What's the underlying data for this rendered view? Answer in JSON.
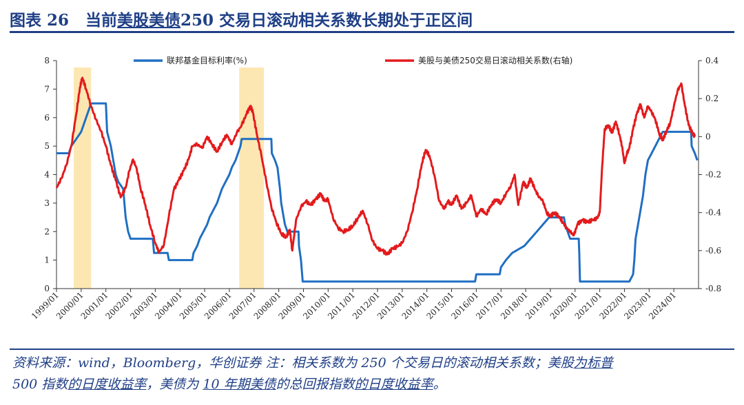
{
  "header": {
    "figure_no": "图表 26",
    "title_prefix": "当前",
    "title_u1": "美股美债",
    "title_rest": "250 交易日滚动相关系数长期处于正区间"
  },
  "source": {
    "line1_a": "资料来源：wind，Bloomberg，华创证券  注：相关系数为 250 个交易日的滚动相关系数；美股",
    "line1_u": "为标普",
    "line2_a": "500 指数",
    "line2_u1": "的日度收益率",
    "line2_b": "，美债为 ",
    "line2_u2": "10 年期美债",
    "line2_c": "的总回报指数",
    "line2_u3": "的日度收益率",
    "line2_d": "。"
  },
  "chart_data": {
    "type": "line",
    "title": "",
    "legend_position": "top",
    "colors": {
      "fed": "#1f6fc2",
      "corr": "#e31a1c",
      "shade": "#fce7b2"
    },
    "x_ticks": [
      "1999/01",
      "2000/01",
      "2001/01",
      "2002/01",
      "2003/01",
      "2004/01",
      "2005/01",
      "2006/01",
      "2007/01",
      "2008/01",
      "2009/01",
      "2010/01",
      "2011/01",
      "2012/01",
      "2013/01",
      "2014/01",
      "2015/01",
      "2016/01",
      "2017/01",
      "2018/01",
      "2019/01",
      "2020/01",
      "2021/01",
      "2022/01",
      "2023/01",
      "2024/01"
    ],
    "x_range": [
      1999.0,
      2025.0
    ],
    "y_left": {
      "range": [
        0,
        8
      ],
      "ticks": [
        "0",
        "1",
        "2",
        "3",
        "4",
        "5",
        "6",
        "7",
        "8"
      ]
    },
    "y_right": {
      "range": [
        -0.8,
        0.4
      ],
      "ticks": [
        "-0.8",
        "-0.6",
        "-0.4",
        "-0.2",
        "0",
        "0.2",
        "0.4"
      ]
    },
    "shaded_periods": [
      [
        1999.7,
        2000.4
      ],
      [
        2006.4,
        2007.4
      ]
    ],
    "series": [
      {
        "name": "联邦基金目标利率(%)",
        "axis": "left",
        "points": [
          [
            1999.0,
            4.75
          ],
          [
            1999.5,
            4.75
          ],
          [
            1999.6,
            5.0
          ],
          [
            1999.8,
            5.25
          ],
          [
            2000.0,
            5.5
          ],
          [
            2000.2,
            6.0
          ],
          [
            2000.4,
            6.5
          ],
          [
            2001.0,
            6.5
          ],
          [
            2001.05,
            5.5
          ],
          [
            2001.2,
            5.0
          ],
          [
            2001.3,
            4.5
          ],
          [
            2001.4,
            4.0
          ],
          [
            2001.5,
            3.75
          ],
          [
            2001.7,
            3.5
          ],
          [
            2001.75,
            3.0
          ],
          [
            2001.8,
            2.5
          ],
          [
            2001.9,
            2.0
          ],
          [
            2002.0,
            1.75
          ],
          [
            2002.9,
            1.75
          ],
          [
            2002.95,
            1.25
          ],
          [
            2003.5,
            1.25
          ],
          [
            2003.55,
            1.0
          ],
          [
            2004.5,
            1.0
          ],
          [
            2004.55,
            1.25
          ],
          [
            2004.7,
            1.5
          ],
          [
            2004.8,
            1.75
          ],
          [
            2004.95,
            2.0
          ],
          [
            2005.1,
            2.25
          ],
          [
            2005.2,
            2.5
          ],
          [
            2005.35,
            2.75
          ],
          [
            2005.5,
            3.0
          ],
          [
            2005.6,
            3.25
          ],
          [
            2005.7,
            3.5
          ],
          [
            2005.85,
            3.75
          ],
          [
            2006.0,
            4.0
          ],
          [
            2006.1,
            4.25
          ],
          [
            2006.25,
            4.5
          ],
          [
            2006.35,
            4.75
          ],
          [
            2006.45,
            5.0
          ],
          [
            2006.5,
            5.25
          ],
          [
            2007.7,
            5.25
          ],
          [
            2007.72,
            4.75
          ],
          [
            2007.85,
            4.5
          ],
          [
            2007.95,
            4.25
          ],
          [
            2008.05,
            3.5
          ],
          [
            2008.1,
            3.0
          ],
          [
            2008.25,
            2.25
          ],
          [
            2008.35,
            2.0
          ],
          [
            2008.8,
            2.0
          ],
          [
            2008.82,
            1.5
          ],
          [
            2008.9,
            1.0
          ],
          [
            2008.97,
            0.25
          ],
          [
            2015.95,
            0.25
          ],
          [
            2016.0,
            0.5
          ],
          [
            2016.95,
            0.5
          ],
          [
            2017.0,
            0.75
          ],
          [
            2017.2,
            1.0
          ],
          [
            2017.45,
            1.25
          ],
          [
            2017.95,
            1.5
          ],
          [
            2018.2,
            1.75
          ],
          [
            2018.45,
            2.0
          ],
          [
            2018.7,
            2.25
          ],
          [
            2018.95,
            2.5
          ],
          [
            2019.55,
            2.5
          ],
          [
            2019.6,
            2.25
          ],
          [
            2019.7,
            2.0
          ],
          [
            2019.8,
            1.75
          ],
          [
            2020.15,
            1.75
          ],
          [
            2020.17,
            1.25
          ],
          [
            2020.2,
            0.25
          ],
          [
            2022.2,
            0.25
          ],
          [
            2022.35,
            0.5
          ],
          [
            2022.4,
            1.0
          ],
          [
            2022.45,
            1.75
          ],
          [
            2022.6,
            2.5
          ],
          [
            2022.75,
            3.25
          ],
          [
            2022.85,
            4.0
          ],
          [
            2022.95,
            4.5
          ],
          [
            2023.1,
            4.75
          ],
          [
            2023.25,
            5.0
          ],
          [
            2023.4,
            5.25
          ],
          [
            2023.55,
            5.5
          ],
          [
            2024.7,
            5.5
          ],
          [
            2024.72,
            5.0
          ],
          [
            2024.85,
            4.75
          ],
          [
            2024.95,
            4.5
          ]
        ]
      },
      {
        "name": "美股与美债250交易日滚动相关系数(右轴)",
        "axis": "right",
        "points": [
          [
            1999.0,
            -0.27
          ],
          [
            1999.2,
            -0.22
          ],
          [
            1999.4,
            -0.15
          ],
          [
            1999.6,
            -0.05
          ],
          [
            1999.8,
            0.12
          ],
          [
            1999.95,
            0.26
          ],
          [
            2000.05,
            0.31
          ],
          [
            2000.2,
            0.25
          ],
          [
            2000.4,
            0.16
          ],
          [
            2000.6,
            0.09
          ],
          [
            2000.8,
            0.03
          ],
          [
            2001.0,
            -0.05
          ],
          [
            2001.2,
            -0.15
          ],
          [
            2001.4,
            -0.23
          ],
          [
            2001.6,
            -0.32
          ],
          [
            2001.8,
            -0.27
          ],
          [
            2001.95,
            -0.18
          ],
          [
            2002.1,
            -0.12
          ],
          [
            2002.25,
            -0.17
          ],
          [
            2002.4,
            -0.27
          ],
          [
            2002.6,
            -0.36
          ],
          [
            2002.8,
            -0.47
          ],
          [
            2003.0,
            -0.56
          ],
          [
            2003.15,
            -0.61
          ],
          [
            2003.35,
            -0.57
          ],
          [
            2003.55,
            -0.42
          ],
          [
            2003.75,
            -0.28
          ],
          [
            2003.95,
            -0.23
          ],
          [
            2004.15,
            -0.18
          ],
          [
            2004.35,
            -0.12
          ],
          [
            2004.5,
            -0.05
          ],
          [
            2004.7,
            -0.04
          ],
          [
            2004.9,
            -0.06
          ],
          [
            2005.1,
            0.0
          ],
          [
            2005.3,
            -0.04
          ],
          [
            2005.5,
            -0.08
          ],
          [
            2005.7,
            -0.03
          ],
          [
            2005.9,
            0.01
          ],
          [
            2006.1,
            -0.04
          ],
          [
            2006.3,
            0.02
          ],
          [
            2006.5,
            0.06
          ],
          [
            2006.7,
            0.12
          ],
          [
            2006.85,
            0.16
          ],
          [
            2006.95,
            0.13
          ],
          [
            2007.1,
            0.02
          ],
          [
            2007.3,
            -0.1
          ],
          [
            2007.5,
            -0.24
          ],
          [
            2007.7,
            -0.37
          ],
          [
            2007.9,
            -0.45
          ],
          [
            2008.1,
            -0.51
          ],
          [
            2008.3,
            -0.53
          ],
          [
            2008.45,
            -0.49
          ],
          [
            2008.55,
            -0.6
          ],
          [
            2008.7,
            -0.44
          ],
          [
            2008.9,
            -0.37
          ],
          [
            2009.1,
            -0.34
          ],
          [
            2009.3,
            -0.36
          ],
          [
            2009.5,
            -0.33
          ],
          [
            2009.7,
            -0.3
          ],
          [
            2009.85,
            -0.34
          ],
          [
            2010.0,
            -0.33
          ],
          [
            2010.2,
            -0.43
          ],
          [
            2010.4,
            -0.48
          ],
          [
            2010.6,
            -0.5
          ],
          [
            2010.8,
            -0.49
          ],
          [
            2011.0,
            -0.47
          ],
          [
            2011.2,
            -0.43
          ],
          [
            2011.4,
            -0.39
          ],
          [
            2011.6,
            -0.46
          ],
          [
            2011.8,
            -0.55
          ],
          [
            2012.0,
            -0.59
          ],
          [
            2012.2,
            -0.6
          ],
          [
            2012.4,
            -0.62
          ],
          [
            2012.6,
            -0.59
          ],
          [
            2012.8,
            -0.58
          ],
          [
            2013.0,
            -0.56
          ],
          [
            2013.2,
            -0.5
          ],
          [
            2013.4,
            -0.4
          ],
          [
            2013.6,
            -0.28
          ],
          [
            2013.8,
            -0.14
          ],
          [
            2013.95,
            -0.07
          ],
          [
            2014.1,
            -0.1
          ],
          [
            2014.3,
            -0.2
          ],
          [
            2014.5,
            -0.34
          ],
          [
            2014.7,
            -0.38
          ],
          [
            2014.85,
            -0.34
          ],
          [
            2015.0,
            -0.36
          ],
          [
            2015.2,
            -0.31
          ],
          [
            2015.4,
            -0.38
          ],
          [
            2015.6,
            -0.35
          ],
          [
            2015.8,
            -0.31
          ],
          [
            2016.0,
            -0.42
          ],
          [
            2016.2,
            -0.38
          ],
          [
            2016.4,
            -0.41
          ],
          [
            2016.6,
            -0.36
          ],
          [
            2016.8,
            -0.33
          ],
          [
            2017.0,
            -0.35
          ],
          [
            2017.2,
            -0.3
          ],
          [
            2017.4,
            -0.26
          ],
          [
            2017.55,
            -0.2
          ],
          [
            2017.7,
            -0.36
          ],
          [
            2017.9,
            -0.24
          ],
          [
            2018.05,
            -0.27
          ],
          [
            2018.2,
            -0.22
          ],
          [
            2018.35,
            -0.27
          ],
          [
            2018.5,
            -0.31
          ],
          [
            2018.7,
            -0.34
          ],
          [
            2018.85,
            -0.4
          ],
          [
            2019.0,
            -0.42
          ],
          [
            2019.15,
            -0.4
          ],
          [
            2019.35,
            -0.42
          ],
          [
            2019.5,
            -0.45
          ],
          [
            2019.65,
            -0.48
          ],
          [
            2019.8,
            -0.5
          ],
          [
            2019.95,
            -0.52
          ],
          [
            2020.1,
            -0.46
          ],
          [
            2020.3,
            -0.44
          ],
          [
            2020.5,
            -0.45
          ],
          [
            2020.7,
            -0.44
          ],
          [
            2020.9,
            -0.43
          ],
          [
            2021.0,
            -0.4
          ],
          [
            2021.1,
            -0.15
          ],
          [
            2021.2,
            0.04
          ],
          [
            2021.35,
            0.06
          ],
          [
            2021.5,
            0.02
          ],
          [
            2021.65,
            0.08
          ],
          [
            2021.8,
            0.01
          ],
          [
            2021.9,
            -0.05
          ],
          [
            2022.0,
            -0.14
          ],
          [
            2022.1,
            -0.09
          ],
          [
            2022.2,
            -0.06
          ],
          [
            2022.35,
            0.04
          ],
          [
            2022.5,
            0.12
          ],
          [
            2022.65,
            0.17
          ],
          [
            2022.8,
            0.1
          ],
          [
            2022.95,
            0.16
          ],
          [
            2023.1,
            0.13
          ],
          [
            2023.25,
            0.09
          ],
          [
            2023.4,
            0.02
          ],
          [
            2023.55,
            -0.02
          ],
          [
            2023.7,
            0.03
          ],
          [
            2023.85,
            0.07
          ],
          [
            2024.0,
            0.16
          ],
          [
            2024.15,
            0.24
          ],
          [
            2024.3,
            0.28
          ],
          [
            2024.45,
            0.16
          ],
          [
            2024.6,
            0.06
          ],
          [
            2024.75,
            0.02
          ],
          [
            2024.85,
            0.0
          ]
        ]
      }
    ]
  }
}
